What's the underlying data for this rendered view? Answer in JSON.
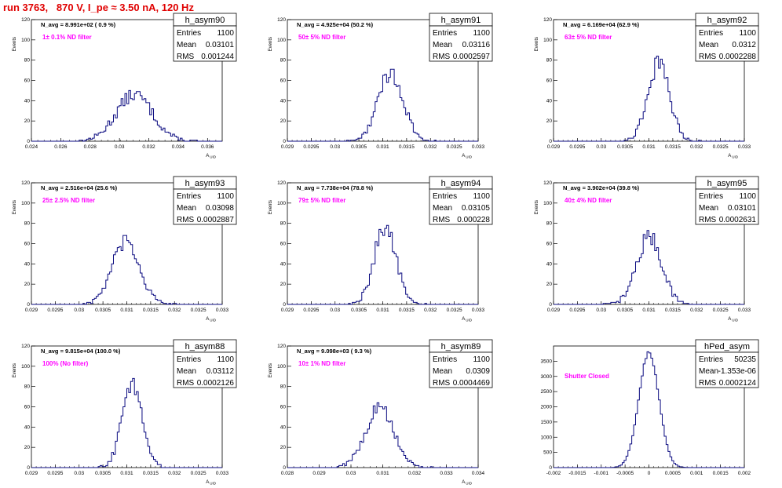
{
  "run_title": "run 3763,   870 V, I_pe ≈ 3.50 nA, 120 Hz",
  "colors": {
    "histogram": "#0b0b80",
    "filter_label": "#ff00ff",
    "title": "#e00000",
    "axes": "#000000"
  },
  "stat_labels": {
    "entries": "Entries",
    "mean": "Mean",
    "rms": "RMS"
  },
  "chart_data": [
    {
      "type": "histogram",
      "name": "h_asym90",
      "navg": "N_avg = 8.991e+02 ( 0.9 %)",
      "filter": "1± 0.1% ND filter",
      "entries": "1100",
      "mean": "0.03101",
      "rms": "0.001244",
      "mean_value": 0.03101,
      "rms_value": 0.001244,
      "xlabel": "A_UID",
      "ylabel": "Events",
      "xlim": [
        0.024,
        0.037
      ],
      "ylim": [
        0,
        120
      ],
      "xticks": [
        "0.024",
        "0.026",
        "0.028",
        "0.03",
        "0.032",
        "0.034",
        "0.036"
      ],
      "yticks": [
        "0",
        "20",
        "40",
        "60",
        "80",
        "100",
        "120"
      ]
    },
    {
      "type": "histogram",
      "name": "h_asym91",
      "navg": "N_avg = 4.925e+04 (50.2 %)",
      "filter": "50± 5% ND filter",
      "entries": "1100",
      "mean": "0.03116",
      "rms": "0.0002597",
      "mean_value": 0.03116,
      "rms_value": 0.0002597,
      "xlabel": "A_UID",
      "ylabel": "Events",
      "xlim": [
        0.029,
        0.033
      ],
      "ylim": [
        0,
        120
      ],
      "xticks": [
        "0.029",
        "0.0295",
        "0.03",
        "0.0305",
        "0.031",
        "0.0315",
        "0.032",
        "0.0325",
        "0.033"
      ],
      "yticks": [
        "0",
        "20",
        "40",
        "60",
        "80",
        "100",
        "120"
      ]
    },
    {
      "type": "histogram",
      "name": "h_asym92",
      "navg": "N_avg = 6.169e+04 (62.9 %)",
      "filter": "63± 5% ND filter",
      "entries": "1100",
      "mean": "0.0312",
      "rms": "0.0002288",
      "mean_value": 0.0312,
      "rms_value": 0.0002288,
      "xlabel": "A_UID",
      "ylabel": "Events",
      "xlim": [
        0.029,
        0.033
      ],
      "ylim": [
        0,
        120
      ],
      "xticks": [
        "0.029",
        "0.0295",
        "0.03",
        "0.0305",
        "0.031",
        "0.0315",
        "0.032",
        "0.0325",
        "0.033"
      ],
      "yticks": [
        "0",
        "20",
        "40",
        "60",
        "80",
        "100",
        "120"
      ]
    },
    {
      "type": "histogram",
      "name": "h_asym93",
      "navg": "N_avg = 2.516e+04 (25.6 %)",
      "filter": "25± 2.5% ND filter",
      "entries": "1100",
      "mean": "0.03098",
      "rms": "0.0002887",
      "mean_value": 0.03098,
      "rms_value": 0.0002887,
      "xlabel": "A_UID",
      "ylabel": "Events",
      "xlim": [
        0.029,
        0.033
      ],
      "ylim": [
        0,
        120
      ],
      "xticks": [
        "0.029",
        "0.0295",
        "0.03",
        "0.0305",
        "0.031",
        "0.0315",
        "0.032",
        "0.0325",
        "0.033"
      ],
      "yticks": [
        "0",
        "20",
        "40",
        "60",
        "80",
        "100",
        "120"
      ]
    },
    {
      "type": "histogram",
      "name": "h_asym94",
      "navg": "N_avg = 7.738e+04 (78.8 %)",
      "filter": "79± 5% ND filter",
      "entries": "1100",
      "mean": "0.03105",
      "rms": "0.000228",
      "mean_value": 0.03105,
      "rms_value": 0.000228,
      "xlabel": "A_UID",
      "ylabel": "Events",
      "xlim": [
        0.029,
        0.033
      ],
      "ylim": [
        0,
        120
      ],
      "xticks": [
        "0.029",
        "0.0295",
        "0.03",
        "0.0305",
        "0.031",
        "0.0315",
        "0.032",
        "0.0325",
        "0.033"
      ],
      "yticks": [
        "0",
        "20",
        "40",
        "60",
        "80",
        "100",
        "120"
      ]
    },
    {
      "type": "histogram",
      "name": "h_asym95",
      "navg": "N_avg = 3.902e+04 (39.8 %)",
      "filter": "40± 4% ND filter",
      "entries": "1100",
      "mean": "0.03101",
      "rms": "0.0002631",
      "mean_value": 0.03101,
      "rms_value": 0.0002631,
      "xlabel": "A_UID",
      "ylabel": "Events",
      "xlim": [
        0.029,
        0.033
      ],
      "ylim": [
        0,
        120
      ],
      "xticks": [
        "0.029",
        "0.0295",
        "0.03",
        "0.0305",
        "0.031",
        "0.0315",
        "0.032",
        "0.0325",
        "0.033"
      ],
      "yticks": [
        "0",
        "20",
        "40",
        "60",
        "80",
        "100",
        "120"
      ]
    },
    {
      "type": "histogram",
      "name": "h_asym88",
      "navg": "N_avg = 9.815e+04 (100.0 %)",
      "filter": "100% (No filter)",
      "entries": "1100",
      "mean": "0.03112",
      "rms": "0.0002126",
      "mean_value": 0.03112,
      "rms_value": 0.0002126,
      "xlabel": "A_UID",
      "ylabel": "Events",
      "xlim": [
        0.029,
        0.033
      ],
      "ylim": [
        0,
        120
      ],
      "xticks": [
        "0.029",
        "0.0295",
        "0.03",
        "0.0305",
        "0.031",
        "0.0315",
        "0.032",
        "0.0325",
        "0.033"
      ],
      "yticks": [
        "0",
        "20",
        "40",
        "60",
        "80",
        "100",
        "120"
      ]
    },
    {
      "type": "histogram",
      "name": "h_asym89",
      "navg": "N_avg = 9.098e+03 ( 9.3 %)",
      "filter": "10± 1% ND filter",
      "entries": "1100",
      "mean": "0.0309",
      "rms": "0.0004469",
      "mean_value": 0.0309,
      "rms_value": 0.0004469,
      "xlabel": "A_UID",
      "ylabel": "Events",
      "xlim": [
        0.028,
        0.034
      ],
      "ylim": [
        0,
        120
      ],
      "xticks": [
        "0.028",
        "0.029",
        "0.03",
        "0.031",
        "0.032",
        "0.033",
        "0.034"
      ],
      "yticks": [
        "0",
        "20",
        "40",
        "60",
        "80",
        "100",
        "120"
      ]
    },
    {
      "type": "histogram",
      "name": "hPed_asym",
      "navg": "",
      "filter": "Shutter Closed",
      "entries": "50235",
      "mean": "-1.353e-06",
      "rms": "0.0002124",
      "mean_value": -1.353e-06,
      "rms_value": 0.0002124,
      "xlabel": "",
      "ylabel": "",
      "xlim": [
        -0.002,
        0.002
      ],
      "ylim": [
        0,
        4000
      ],
      "xticks": [
        "-0.002",
        "-0.0015",
        "-0.001",
        "-0.0005",
        "0",
        "0.0005",
        "0.001",
        "0.0015",
        "0.002"
      ],
      "yticks": [
        "0",
        "500",
        "1000",
        "1500",
        "2000",
        "2500",
        "3000",
        "3500"
      ]
    }
  ]
}
